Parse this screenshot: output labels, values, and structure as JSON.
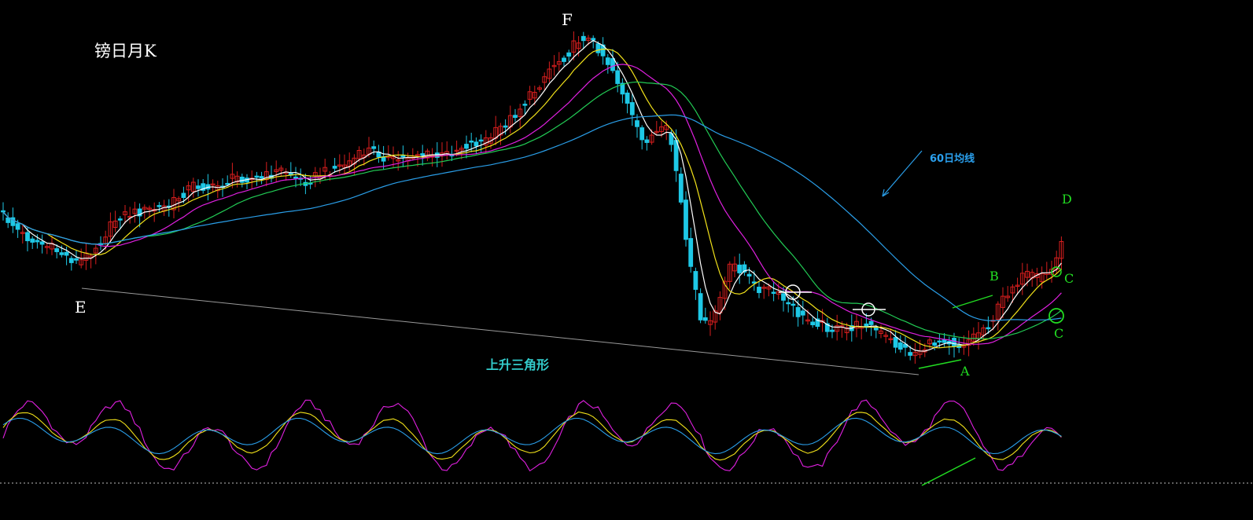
{
  "chart_data": {
    "type": "candlestick",
    "title": "镑日月K",
    "annotations": {
      "point_e": "E",
      "point_f": "F",
      "point_a": "A",
      "point_b": "B",
      "point_d": "D",
      "point_c1": "C",
      "point_c2": "C",
      "triangle_text": "上升三角形",
      "ma60_text": "60日均线"
    },
    "colors": {
      "background": "#000000",
      "up_candle": "#d81e1e",
      "down_candle": "#1ec8e6",
      "ma5": "#ffffff",
      "ma10": "#f2e21a",
      "ma20": "#e020e0",
      "ma30": "#22cc55",
      "ma60": "#2a9ee8",
      "osc_k": "#e020e0",
      "osc_d": "#f2e21a",
      "osc_j": "#2a9ee8",
      "trendline": "#9a9a9a",
      "annotation_green": "#22dd22"
    },
    "series": [
      {
        "indicator": "MA5"
      },
      {
        "indicator": "MA10"
      },
      {
        "indicator": "MA20"
      },
      {
        "indicator": "MA30"
      },
      {
        "indicator": "MA60"
      }
    ]
  }
}
